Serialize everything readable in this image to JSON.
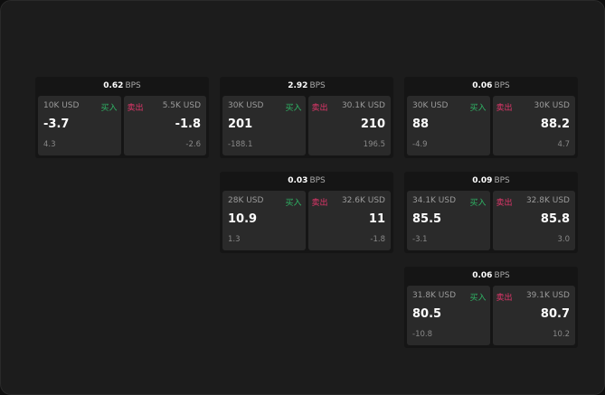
{
  "unit_label": "BPS",
  "buy_label": "买入",
  "sell_label": "卖出",
  "colors": {
    "buy": "#2fb565",
    "sell": "#e0366a",
    "background": "#1c1c1c",
    "tile": "#2a2a2a"
  },
  "widgets": [
    {
      "spread": "0.62",
      "buy": {
        "size": "10K USD",
        "price": "-3.7",
        "delta": "4.3"
      },
      "sell": {
        "size": "5.5K USD",
        "price": "-1.8",
        "delta": "-2.6"
      }
    },
    {
      "spread": "2.92",
      "buy": {
        "size": "30K USD",
        "price": "201",
        "delta": "-188.1"
      },
      "sell": {
        "size": "30.1K USD",
        "price": "210",
        "delta": "196.5"
      }
    },
    {
      "spread": "0.06",
      "buy": {
        "size": "30K USD",
        "price": "88",
        "delta": "-4.9"
      },
      "sell": {
        "size": "30K USD",
        "price": "88.2",
        "delta": "4.7"
      }
    },
    {
      "spread": "0.03",
      "buy": {
        "size": "28K USD",
        "price": "10.9",
        "delta": "1.3"
      },
      "sell": {
        "size": "32.6K USD",
        "price": "11",
        "delta": "-1.8"
      }
    },
    {
      "spread": "0.09",
      "buy": {
        "size": "34.1K USD",
        "price": "85.5",
        "delta": "-3.1"
      },
      "sell": {
        "size": "32.8K USD",
        "price": "85.8",
        "delta": "3.0"
      }
    },
    {
      "spread": "0.06",
      "buy": {
        "size": "31.8K USD",
        "price": "80.5",
        "delta": "-10.8"
      },
      "sell": {
        "size": "39.1K USD",
        "price": "80.7",
        "delta": "10.2"
      }
    }
  ]
}
